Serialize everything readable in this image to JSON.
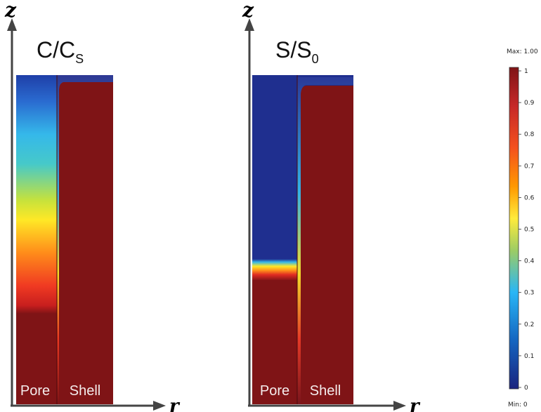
{
  "panels": [
    {
      "title_main": "C/C",
      "title_sub": "S",
      "z_label": "z",
      "r_label": "r",
      "region_left": "Pore",
      "region_right": "Shell"
    },
    {
      "title_main": "S/S",
      "title_sub": "0",
      "z_label": "z",
      "r_label": "r",
      "region_left": "Pore",
      "region_right": "Shell"
    }
  ],
  "colorbar": {
    "max_label": "Max: 1.00",
    "min_label": "Min: 0",
    "ticks": [
      "1",
      "0.9",
      "0.8",
      "0.7",
      "0.6",
      "0.5",
      "0.4",
      "0.3",
      "0.2",
      "0.1",
      "0"
    ],
    "colormap": [
      "#1a237e",
      "#1565c0",
      "#29b6f6",
      "#9ccc65",
      "#ffeb3b",
      "#ff9800",
      "#f4511e",
      "#c62828",
      "#7f1416"
    ]
  },
  "colors": {
    "dark_red": "#7f1416",
    "dark_blue": "#1f2f8f"
  }
}
